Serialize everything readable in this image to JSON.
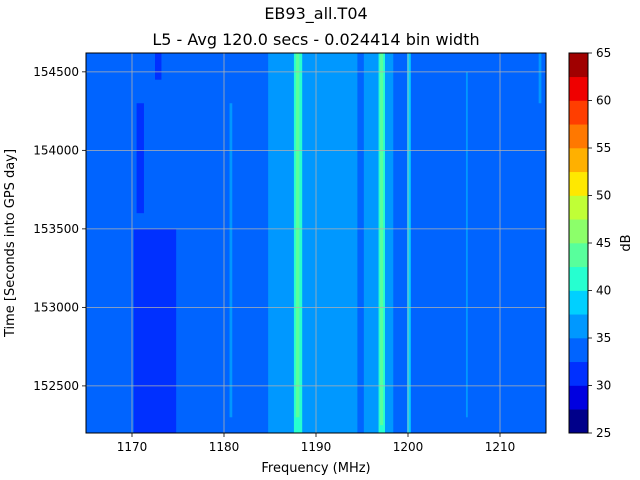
{
  "chart_data": {
    "type": "heatmap",
    "title": "EB93_all.T04",
    "subtitle": "L5 - Avg 120.0 secs - 0.024414 bin width",
    "xlabel": "Frequency (MHz)",
    "ylabel": "Time [Seconds into GPS day]",
    "xlim": [
      1165,
      1215
    ],
    "ylim": [
      152200,
      154620
    ],
    "x_ticks": [
      "1170",
      "1180",
      "1190",
      "1200",
      "1210"
    ],
    "y_ticks": [
      "152500",
      "153000",
      "153500",
      "154000",
      "154500"
    ],
    "grid": true,
    "background_level_db": 32.5,
    "colorbar": {
      "label": "dB",
      "ticks": [
        "25",
        "30",
        "35",
        "40",
        "45",
        "50",
        "55",
        "60",
        "65"
      ],
      "levels": [
        25,
        27.5,
        30,
        32.5,
        35,
        37.5,
        40,
        42.5,
        45,
        47.5,
        50,
        52.5,
        55,
        57.5,
        60,
        62.5,
        65
      ],
      "colors": [
        "#00008a",
        "#0000e0",
        "#0030ff",
        "#0064ff",
        "#0098ff",
        "#00d0ff",
        "#26ffd0",
        "#58ff9c",
        "#8cff6a",
        "#c0ff36",
        "#ffe800",
        "#ffb000",
        "#ff7800",
        "#ff3e00",
        "#ef0000",
        "#a00000"
      ]
    },
    "features": [
      {
        "type": "band",
        "x_range": [
          1165.0,
          1215.0
        ],
        "y_range": [
          152200,
          154620
        ],
        "level_db": 32.5
      },
      {
        "type": "band",
        "x_range": [
          1170.2,
          1174.8
        ],
        "y_range": [
          152200,
          153500
        ],
        "level_db": 30
      },
      {
        "type": "band",
        "x_range": [
          1170.5,
          1171.3
        ],
        "y_range": [
          153600,
          154300
        ],
        "level_db": 30
      },
      {
        "type": "band",
        "x_range": [
          1172.5,
          1173.2
        ],
        "y_range": [
          154450,
          154620
        ],
        "level_db": 30
      },
      {
        "type": "band",
        "x_range": [
          1184.8,
          1194.5
        ],
        "y_range": [
          152200,
          154620
        ],
        "level_db": 35
      },
      {
        "type": "band",
        "x_range": [
          1195.2,
          1198.4
        ],
        "y_range": [
          152200,
          154620
        ],
        "level_db": 35
      },
      {
        "type": "band",
        "x_range": [
          1180.6,
          1180.9
        ],
        "y_range": [
          152300,
          154300
        ],
        "level_db": 35
      },
      {
        "type": "band",
        "x_range": [
          1206.3,
          1206.5
        ],
        "y_range": [
          152300,
          154500
        ],
        "level_db": 35
      },
      {
        "type": "band",
        "x_range": [
          1214.2,
          1214.5
        ],
        "y_range": [
          154300,
          154620
        ],
        "level_db": 35
      },
      {
        "type": "band",
        "x_range": [
          1187.6,
          1188.5
        ],
        "y_range": [
          152200,
          154620
        ],
        "level_db": 40
      },
      {
        "type": "band",
        "x_range": [
          1196.8,
          1197.5
        ],
        "y_range": [
          152200,
          154620
        ],
        "level_db": 40
      },
      {
        "type": "band",
        "x_range": [
          1199.9,
          1200.3
        ],
        "y_range": [
          152200,
          154620
        ],
        "level_db": 37.5
      },
      {
        "type": "band",
        "x_range": [
          1187.8,
          1188.2
        ],
        "y_range": [
          152300,
          154620
        ],
        "level_db": 42.5
      },
      {
        "type": "band",
        "x_range": [
          1196.95,
          1197.3
        ],
        "y_range": [
          152250,
          154620
        ],
        "level_db": 42.5
      }
    ]
  }
}
